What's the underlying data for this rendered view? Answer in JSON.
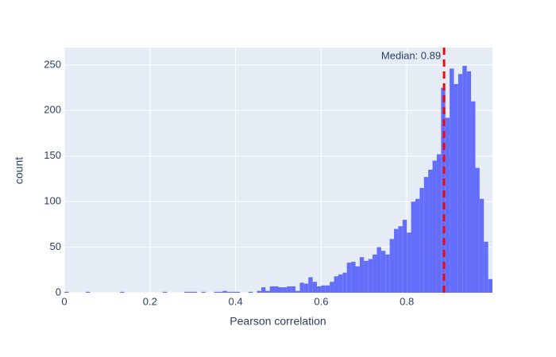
{
  "chart_data": {
    "type": "histogram",
    "x_label": "Pearson correlation",
    "y_label": "count",
    "color": "#636efa",
    "bins": [
      0,
      0.01,
      0.02,
      0.03,
      0.04,
      0.05,
      0.06,
      0.07,
      0.08,
      0.09,
      0.1,
      0.11,
      0.12,
      0.13,
      0.14,
      0.15,
      0.16,
      0.17,
      0.18,
      0.19,
      0.2,
      0.21,
      0.22,
      0.23,
      0.24,
      0.25,
      0.26,
      0.27,
      0.28,
      0.29,
      0.3,
      0.31,
      0.32,
      0.33,
      0.34,
      0.35,
      0.36,
      0.37,
      0.38,
      0.39,
      0.4,
      0.41,
      0.42,
      0.43,
      0.44,
      0.45,
      0.46,
      0.47,
      0.48,
      0.49,
      0.5,
      0.51,
      0.52,
      0.53,
      0.54,
      0.55,
      0.56,
      0.57,
      0.58,
      0.59,
      0.6,
      0.61,
      0.62,
      0.63,
      0.64,
      0.65,
      0.66,
      0.67,
      0.68,
      0.69,
      0.7,
      0.71,
      0.72,
      0.73,
      0.74,
      0.75,
      0.76,
      0.77,
      0.78,
      0.79,
      0.8,
      0.81,
      0.82,
      0.83,
      0.84,
      0.85,
      0.86,
      0.87,
      0.88,
      0.89,
      0.9,
      0.91,
      0.92,
      0.93,
      0.94,
      0.95,
      0.96,
      0.97,
      0.98,
      0.99,
      1
    ],
    "values": [
      1,
      0,
      0,
      0,
      0,
      1,
      0,
      0,
      0,
      0,
      0,
      0,
      0,
      1,
      0,
      0,
      0,
      0,
      0,
      0,
      0,
      0,
      0,
      1,
      0,
      0,
      0,
      0,
      1,
      1,
      1,
      0,
      1,
      0,
      0,
      1,
      1,
      2,
      1,
      1,
      1,
      0,
      0,
      1,
      0,
      2,
      6,
      2,
      7,
      7,
      6,
      6,
      7,
      7,
      2,
      11,
      10,
      17,
      12,
      7,
      8,
      8,
      12,
      18,
      20,
      22,
      33,
      34,
      29,
      39,
      35,
      37,
      42,
      50,
      46,
      42,
      59,
      70,
      73,
      80,
      66,
      100,
      103,
      115,
      127,
      135,
      145,
      152,
      225,
      192,
      246,
      229,
      240,
      249,
      243,
      210,
      137,
      103,
      56,
      15
    ],
    "xlim": [
      0,
      1
    ],
    "ylim": [
      0,
      269
    ],
    "xticks": [
      0,
      0.2,
      0.4,
      0.6,
      0.8
    ],
    "yticks": [
      0,
      50,
      100,
      150,
      200,
      250
    ],
    "grid": true,
    "median_line": {
      "x": 0.887,
      "color": "#ff0000",
      "label": "Median: 0.89"
    }
  }
}
